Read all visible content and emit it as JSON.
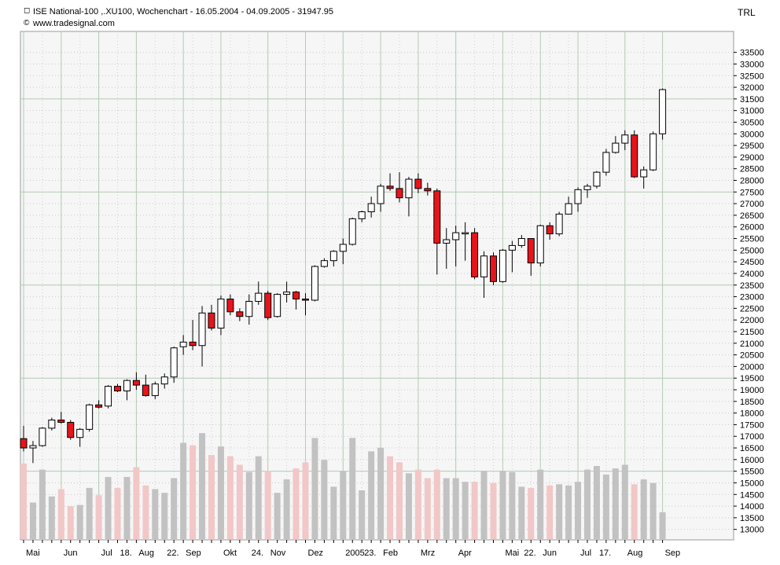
{
  "header": {
    "title": "ISE National-100 ,.XU100, Wochenchart - 16.05.2004 - 04.09.2005 - 31947.95",
    "source": "www.tradesignal.com",
    "currency": "TRL"
  },
  "colors": {
    "up_body": "#ffffff",
    "down_body": "#e8141b",
    "volume_up": "#c2c2c2",
    "volume_down": "#f2c7c7",
    "plot_bg": "#f6f6f6",
    "grid_major": "#b4ccb4"
  },
  "chart_data": {
    "type": "candlestick",
    "title": "ISE National-100 ,.XU100, Wochenchart - 16.05.2004 - 04.09.2005 - 31947.95",
    "xlabel": "",
    "ylabel": "",
    "y_unit": "TRL",
    "ylim": [
      12550,
      34400
    ],
    "yticks": [
      13000,
      13500,
      14000,
      14500,
      15000,
      15500,
      16000,
      16500,
      17000,
      17500,
      18000,
      18500,
      19000,
      19500,
      20000,
      20500,
      21000,
      21500,
      22000,
      22500,
      23000,
      23500,
      24000,
      24500,
      25000,
      25500,
      26000,
      26500,
      27000,
      27500,
      28000,
      28500,
      29000,
      29500,
      30000,
      30500,
      31000,
      31500,
      32000,
      32500,
      33000,
      33500
    ],
    "major_gridlines": [
      15500,
      19500,
      23500,
      27500,
      31500
    ],
    "grid": true,
    "x_tick_labels": [
      {
        "week": 0,
        "label": "Mai"
      },
      {
        "week": 4,
        "label": "Jun"
      },
      {
        "week": 8,
        "label": "Jul"
      },
      {
        "week": 10,
        "label": "18."
      },
      {
        "week": 12,
        "label": "Aug"
      },
      {
        "week": 15,
        "label": "22."
      },
      {
        "week": 17,
        "label": "Sep"
      },
      {
        "week": 21,
        "label": "Okt"
      },
      {
        "week": 24,
        "label": "24."
      },
      {
        "week": 26,
        "label": "Nov"
      },
      {
        "week": 30,
        "label": "Dez"
      },
      {
        "week": 34,
        "label": "2005"
      },
      {
        "week": 36,
        "label": "23."
      },
      {
        "week": 38,
        "label": "Feb"
      },
      {
        "week": 42,
        "label": "Mrz"
      },
      {
        "week": 46,
        "label": "Apr"
      },
      {
        "week": 51,
        "label": "Mai"
      },
      {
        "week": 53,
        "label": "22."
      },
      {
        "week": 55,
        "label": "Jun"
      },
      {
        "week": 59,
        "label": "Jul"
      },
      {
        "week": 61,
        "label": "17."
      },
      {
        "week": 64,
        "label": "Aug"
      },
      {
        "week": 68,
        "label": "Sep"
      }
    ],
    "candles": [
      {
        "open": 16900,
        "high": 17450,
        "low": 16350,
        "close": 16500,
        "volume": 62
      },
      {
        "open": 16500,
        "high": 16800,
        "low": 15850,
        "close": 16600,
        "volume": 30
      },
      {
        "open": 16600,
        "high": 17400,
        "low": 16550,
        "close": 17350,
        "volume": 57
      },
      {
        "open": 17350,
        "high": 17800,
        "low": 17250,
        "close": 17700,
        "volume": 35
      },
      {
        "open": 17700,
        "high": 18050,
        "low": 17550,
        "close": 17600,
        "volume": 41
      },
      {
        "open": 17600,
        "high": 17700,
        "low": 16850,
        "close": 16950,
        "volume": 27
      },
      {
        "open": 16950,
        "high": 17350,
        "low": 16550,
        "close": 17300,
        "volume": 28
      },
      {
        "open": 17300,
        "high": 18400,
        "low": 17200,
        "close": 18350,
        "volume": 42
      },
      {
        "open": 18350,
        "high": 18550,
        "low": 18200,
        "close": 18250,
        "volume": 36
      },
      {
        "open": 18300,
        "high": 19200,
        "low": 18200,
        "close": 19150,
        "volume": 51
      },
      {
        "open": 19150,
        "high": 19250,
        "low": 18900,
        "close": 18950,
        "volume": 42
      },
      {
        "open": 18950,
        "high": 19450,
        "low": 18550,
        "close": 19400,
        "volume": 51
      },
      {
        "open": 19400,
        "high": 19750,
        "low": 19000,
        "close": 19200,
        "volume": 59
      },
      {
        "open": 19200,
        "high": 19650,
        "low": 18700,
        "close": 18750,
        "volume": 44
      },
      {
        "open": 18750,
        "high": 19350,
        "low": 18600,
        "close": 19250,
        "volume": 41
      },
      {
        "open": 19250,
        "high": 19700,
        "low": 19050,
        "close": 19550,
        "volume": 38
      },
      {
        "open": 19550,
        "high": 20850,
        "low": 19300,
        "close": 20800,
        "volume": 50
      },
      {
        "open": 20850,
        "high": 21350,
        "low": 20500,
        "close": 21050,
        "volume": 79
      },
      {
        "open": 21050,
        "high": 22000,
        "low": 20700,
        "close": 20900,
        "volume": 77
      },
      {
        "open": 20900,
        "high": 22600,
        "low": 20000,
        "close": 22300,
        "volume": 87
      },
      {
        "open": 22300,
        "high": 22650,
        "low": 21550,
        "close": 21650,
        "volume": 69
      },
      {
        "open": 21650,
        "high": 23050,
        "low": 21350,
        "close": 22900,
        "volume": 76
      },
      {
        "open": 22900,
        "high": 23100,
        "low": 22200,
        "close": 22350,
        "volume": 68
      },
      {
        "open": 22350,
        "high": 22500,
        "low": 21950,
        "close": 22150,
        "volume": 61
      },
      {
        "open": 22150,
        "high": 23100,
        "low": 21800,
        "close": 22800,
        "volume": 55
      },
      {
        "open": 22800,
        "high": 23650,
        "low": 22650,
        "close": 23150,
        "volume": 68
      },
      {
        "open": 23150,
        "high": 23250,
        "low": 22000,
        "close": 22100,
        "volume": 56
      },
      {
        "open": 22150,
        "high": 23150,
        "low": 22100,
        "close": 23100,
        "volume": 38
      },
      {
        "open": 23100,
        "high": 23650,
        "low": 22750,
        "close": 23200,
        "volume": 49
      },
      {
        "open": 23200,
        "high": 23250,
        "low": 22450,
        "close": 22900,
        "volume": 58
      },
      {
        "open": 22900,
        "high": 23150,
        "low": 22200,
        "close": 22850,
        "volume": 63
      },
      {
        "open": 22850,
        "high": 24350,
        "low": 22800,
        "close": 24300,
        "volume": 83
      },
      {
        "open": 24300,
        "high": 24650,
        "low": 24250,
        "close": 24550,
        "volume": 65
      },
      {
        "open": 24550,
        "high": 25000,
        "low": 24300,
        "close": 24950,
        "volume": 43
      },
      {
        "open": 24950,
        "high": 25500,
        "low": 24400,
        "close": 25250,
        "volume": 56
      },
      {
        "open": 25250,
        "high": 26400,
        "low": 25200,
        "close": 26350,
        "volume": 83
      },
      {
        "open": 26350,
        "high": 26700,
        "low": 26200,
        "close": 26650,
        "volume": 40
      },
      {
        "open": 26650,
        "high": 27300,
        "low": 26400,
        "close": 27000,
        "volume": 72
      },
      {
        "open": 27000,
        "high": 27850,
        "low": 26650,
        "close": 27750,
        "volume": 75
      },
      {
        "open": 27750,
        "high": 28300,
        "low": 27550,
        "close": 27650,
        "volume": 68
      },
      {
        "open": 27650,
        "high": 28350,
        "low": 27050,
        "close": 27250,
        "volume": 63
      },
      {
        "open": 27250,
        "high": 28150,
        "low": 26450,
        "close": 28050,
        "volume": 54
      },
      {
        "open": 28050,
        "high": 28300,
        "low": 27450,
        "close": 27650,
        "volume": 57
      },
      {
        "open": 27650,
        "high": 27900,
        "low": 27350,
        "close": 27550,
        "volume": 50
      },
      {
        "open": 27550,
        "high": 27650,
        "low": 23950,
        "close": 25300,
        "volume": 57
      },
      {
        "open": 25300,
        "high": 25950,
        "low": 24200,
        "close": 25450,
        "volume": 50
      },
      {
        "open": 25450,
        "high": 26050,
        "low": 24300,
        "close": 25750,
        "volume": 50
      },
      {
        "open": 25750,
        "high": 26200,
        "low": 24550,
        "close": 25750,
        "volume": 47
      },
      {
        "open": 25750,
        "high": 25950,
        "low": 23750,
        "close": 23850,
        "volume": 47
      },
      {
        "open": 23850,
        "high": 24950,
        "low": 22950,
        "close": 24750,
        "volume": 56
      },
      {
        "open": 24750,
        "high": 24900,
        "low": 23500,
        "close": 23650,
        "volume": 46
      },
      {
        "open": 23650,
        "high": 25050,
        "low": 23600,
        "close": 25000,
        "volume": 56
      },
      {
        "open": 25000,
        "high": 25400,
        "low": 24050,
        "close": 25200,
        "volume": 55
      },
      {
        "open": 25200,
        "high": 25650,
        "low": 25100,
        "close": 25500,
        "volume": 43
      },
      {
        "open": 25500,
        "high": 25500,
        "low": 23900,
        "close": 24450,
        "volume": 42
      },
      {
        "open": 24450,
        "high": 26100,
        "low": 24300,
        "close": 26050,
        "volume": 57
      },
      {
        "open": 26050,
        "high": 26200,
        "low": 25450,
        "close": 25700,
        "volume": 44
      },
      {
        "open": 25700,
        "high": 26650,
        "low": 25600,
        "close": 26550,
        "volume": 45
      },
      {
        "open": 26550,
        "high": 27300,
        "low": 26550,
        "close": 27000,
        "volume": 44
      },
      {
        "open": 27000,
        "high": 27700,
        "low": 26650,
        "close": 27600,
        "volume": 47
      },
      {
        "open": 27600,
        "high": 27850,
        "low": 27250,
        "close": 27750,
        "volume": 57
      },
      {
        "open": 27750,
        "high": 28400,
        "low": 27650,
        "close": 28350,
        "volume": 60
      },
      {
        "open": 28350,
        "high": 29350,
        "low": 28200,
        "close": 29200,
        "volume": 53
      },
      {
        "open": 29200,
        "high": 29900,
        "low": 29150,
        "close": 29600,
        "volume": 58
      },
      {
        "open": 29600,
        "high": 30150,
        "low": 29300,
        "close": 29950,
        "volume": 61
      },
      {
        "open": 29950,
        "high": 30150,
        "low": 28100,
        "close": 28150,
        "volume": 45
      },
      {
        "open": 28150,
        "high": 28600,
        "low": 27650,
        "close": 28450,
        "volume": 49
      },
      {
        "open": 28450,
        "high": 30100,
        "low": 28400,
        "close": 30000,
        "volume": 46
      },
      {
        "open": 30000,
        "high": 31950,
        "low": 29750,
        "close": 31900,
        "volume": 22
      }
    ]
  }
}
